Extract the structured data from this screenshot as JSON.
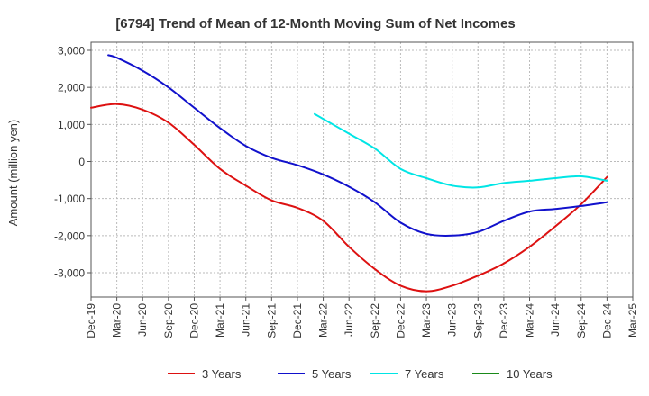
{
  "chart_data": {
    "type": "line",
    "title": "[6794]  Trend of Mean of 12-Month Moving Sum of Net Incomes",
    "ylabel": "Amount (million yen)",
    "xlabel": "",
    "ylim": [
      -3650,
      3000
    ],
    "yticks": [
      3000,
      2000,
      1000,
      0,
      -1000,
      -2000,
      -3000
    ],
    "ytick_labels": [
      "3,000",
      "2,000",
      "1,000",
      "0",
      "-1,000",
      "-2,000",
      "-3,000"
    ],
    "x_categories": [
      "Dec-19",
      "Mar-20",
      "Jun-20",
      "Sep-20",
      "Dec-20",
      "Mar-21",
      "Jun-21",
      "Sep-21",
      "Dec-21",
      "Mar-22",
      "Jun-22",
      "Sep-22",
      "Dec-22",
      "Mar-23",
      "Jun-23",
      "Sep-23",
      "Dec-23",
      "Mar-24",
      "Jun-24",
      "Sep-24",
      "Dec-24",
      "Mar-25"
    ],
    "grid": true,
    "legend_position": "bottom",
    "series": [
      {
        "name": "3 Years",
        "color": "#dd1111",
        "points": [
          [
            0,
            1450
          ],
          [
            1,
            1550
          ],
          [
            2,
            1400
          ],
          [
            3,
            1050
          ],
          [
            4,
            450
          ],
          [
            5,
            -200
          ],
          [
            6,
            -650
          ],
          [
            7,
            -1050
          ],
          [
            8,
            -1250
          ],
          [
            9,
            -1600
          ],
          [
            10,
            -2300
          ],
          [
            11,
            -2900
          ],
          [
            12,
            -3350
          ],
          [
            13,
            -3500
          ],
          [
            14,
            -3350
          ],
          [
            15,
            -3080
          ],
          [
            16,
            -2750
          ],
          [
            17,
            -2300
          ],
          [
            18,
            -1750
          ],
          [
            19,
            -1150
          ],
          [
            20,
            -420
          ]
        ]
      },
      {
        "name": "5 Years",
        "color": "#1111cc",
        "points": [
          [
            0.667,
            2870
          ],
          [
            1,
            2800
          ],
          [
            2,
            2450
          ],
          [
            3,
            2000
          ],
          [
            4,
            1450
          ],
          [
            5,
            900
          ],
          [
            6,
            420
          ],
          [
            7,
            100
          ],
          [
            8,
            -100
          ],
          [
            9,
            -350
          ],
          [
            10,
            -680
          ],
          [
            11,
            -1100
          ],
          [
            12,
            -1650
          ],
          [
            13,
            -1950
          ],
          [
            14,
            -2000
          ],
          [
            15,
            -1900
          ],
          [
            16,
            -1600
          ],
          [
            17,
            -1350
          ],
          [
            18,
            -1280
          ],
          [
            19,
            -1200
          ],
          [
            20,
            -1100
          ]
        ]
      },
      {
        "name": "7 Years",
        "color": "#00e5e5",
        "points": [
          [
            8.667,
            1280
          ],
          [
            9,
            1150
          ],
          [
            10,
            750
          ],
          [
            11,
            350
          ],
          [
            12,
            -200
          ],
          [
            13,
            -450
          ],
          [
            14,
            -650
          ],
          [
            15,
            -700
          ],
          [
            16,
            -580
          ],
          [
            17,
            -520
          ],
          [
            18,
            -450
          ],
          [
            19,
            -400
          ],
          [
            20,
            -520
          ]
        ]
      },
      {
        "name": "10 Years",
        "color": "#1a8a1a",
        "points": []
      }
    ]
  }
}
